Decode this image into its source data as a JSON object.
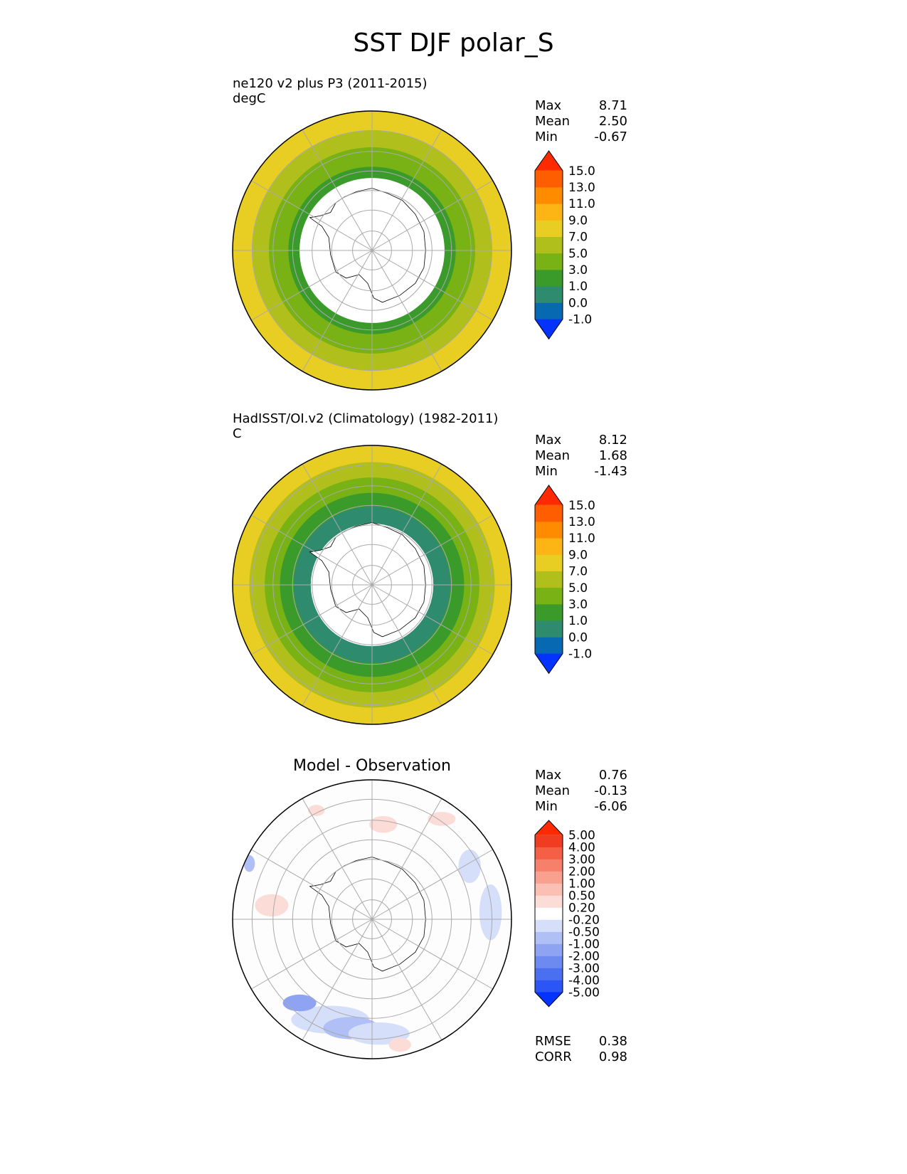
{
  "title": "SST DJF polar_S",
  "panels": {
    "model": {
      "title": "ne120 v2 plus P3 (2011-2015)",
      "units": "degC",
      "stats": [
        [
          "Max",
          "8.71"
        ],
        [
          "Mean",
          "2.50"
        ],
        [
          "Min",
          "-0.67"
        ]
      ]
    },
    "obs": {
      "title": "HadISST/OI.v2 (Climatology) (1982-2011)",
      "units": "C",
      "stats": [
        [
          "Max",
          "8.12"
        ],
        [
          "Mean",
          "1.68"
        ],
        [
          "Min",
          "-1.43"
        ]
      ]
    },
    "diff": {
      "title": "Model - Observation",
      "stats": [
        [
          "Max",
          "0.76"
        ],
        [
          "Mean",
          "-0.13"
        ],
        [
          "Min",
          "-6.06"
        ]
      ],
      "metrics": [
        [
          "RMSE",
          "0.38"
        ],
        [
          "CORR",
          "0.98"
        ]
      ]
    }
  },
  "chart_data": [
    {
      "type": "heatmap",
      "title": "ne120 v2 plus P3 (2011-2015)",
      "units": "degC",
      "projection": "south polar stereographic",
      "colorbar_levels": [
        "-1.0",
        "0.0",
        "1.0",
        "3.0",
        "5.0",
        "7.0",
        "9.0",
        "11.0",
        "13.0",
        "15.0"
      ],
      "colorbar_colors": [
        "#0433ff",
        "#0869b3",
        "#2e8b6e",
        "#3a9b2a",
        "#78b214",
        "#b0bf1c",
        "#e8cd22",
        "#fdb515",
        "#ff8c00",
        "#ff5e00",
        "#ff2a00"
      ],
      "zones_outer_to_inner": [
        "7.0",
        "5.0",
        "3.0",
        "1.0"
      ],
      "sea_ice_mask": "white",
      "stats": {
        "Max": 8.71,
        "Mean": 2.5,
        "Min": -0.67
      }
    },
    {
      "type": "heatmap",
      "title": "HadISST/OI.v2 (Climatology) (1982-2011)",
      "units": "C",
      "projection": "south polar stereographic",
      "colorbar_levels": [
        "-1.0",
        "0.0",
        "1.0",
        "3.0",
        "5.0",
        "7.0",
        "9.0",
        "11.0",
        "13.0",
        "15.0"
      ],
      "colorbar_colors": [
        "#0433ff",
        "#0869b3",
        "#2e8b6e",
        "#3a9b2a",
        "#78b214",
        "#b0bf1c",
        "#e8cd22",
        "#fdb515",
        "#ff8c00",
        "#ff5e00",
        "#ff2a00"
      ],
      "zones_outer_to_inner": [
        "7.0",
        "5.0",
        "3.0",
        "1.0",
        "0.0"
      ],
      "sea_ice_mask": "white",
      "stats": {
        "Max": 8.12,
        "Mean": 1.68,
        "Min": -1.43
      }
    },
    {
      "type": "heatmap",
      "title": "Model - Observation",
      "projection": "south polar stereographic",
      "colorbar_levels": [
        "-5.00",
        "-4.00",
        "-3.00",
        "-2.00",
        "-1.00",
        "-0.50",
        "-0.20",
        "0.20",
        "0.50",
        "1.00",
        "2.00",
        "3.00",
        "4.00",
        "5.00"
      ],
      "colorbar_colors": [
        "#0433ff",
        "#2b55f5",
        "#4a6ff0",
        "#6c8af0",
        "#8ea4f2",
        "#b0bff5",
        "#d6dffa",
        "#ffffff",
        "#fcdcd6",
        "#fbbfb4",
        "#f9a08f",
        "#f7806b",
        "#f45f46",
        "#f03d22",
        "#ff2a00"
      ],
      "stats": {
        "Max": 0.76,
        "Mean": -0.13,
        "Min": -6.06
      },
      "metrics": {
        "RMSE": 0.38,
        "CORR": 0.98
      }
    }
  ]
}
